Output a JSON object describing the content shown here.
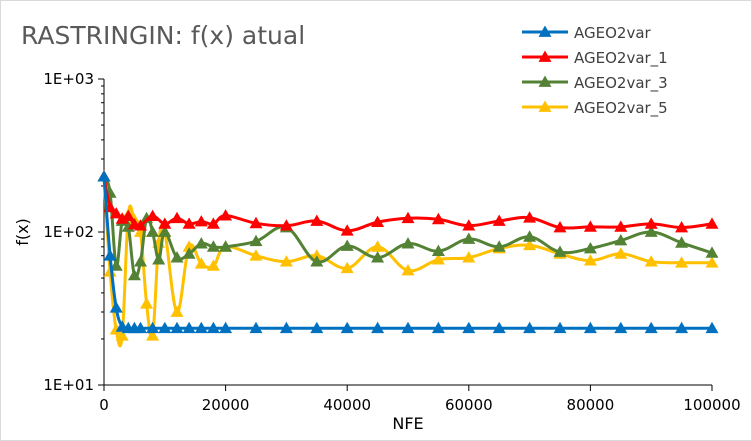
{
  "chart_data": {
    "type": "line",
    "title": "RASTRINGIN: f(x) atual",
    "xlabel": "NFE",
    "ylabel": "f(x)",
    "xlim": [
      0,
      100000
    ],
    "ylim": [
      10,
      1000
    ],
    "yscale": "log",
    "grid": false,
    "legend": "top-right",
    "x_ticks": [
      0,
      20000,
      40000,
      60000,
      80000,
      100000
    ],
    "x_tick_labels": [
      "0",
      "20000",
      "40000",
      "60000",
      "80000",
      "100000"
    ],
    "y_ticks": [
      10,
      100,
      1000
    ],
    "y_tick_labels": [
      "1E+01",
      "1E+02",
      "1E+03"
    ],
    "series": [
      {
        "name": "AGEO2var",
        "color": "#0070c0",
        "x": [
          0,
          1000,
          2000,
          3000,
          4000,
          5000,
          6000,
          8000,
          10000,
          12000,
          14000,
          16000,
          18000,
          20000,
          25000,
          30000,
          35000,
          40000,
          45000,
          50000,
          55000,
          60000,
          65000,
          70000,
          75000,
          80000,
          85000,
          90000,
          95000,
          100000
        ],
        "y": [
          230,
          70,
          32,
          24,
          23.5,
          23.5,
          23.5,
          23.5,
          23.5,
          23.5,
          23.5,
          23.5,
          23.5,
          23.5,
          23.5,
          23.5,
          23.5,
          23.5,
          23.5,
          23.5,
          23.5,
          23.5,
          23.5,
          23.5,
          23.5,
          23.5,
          23.5,
          23.5,
          23.5,
          23.5
        ]
      },
      {
        "name": "AGEO2var_1",
        "color": "#ff0000",
        "x": [
          0,
          1000,
          2000,
          3000,
          4000,
          5000,
          6000,
          8000,
          10000,
          12000,
          14000,
          16000,
          18000,
          20000,
          25000,
          30000,
          35000,
          40000,
          45000,
          50000,
          55000,
          60000,
          65000,
          70000,
          75000,
          80000,
          85000,
          90000,
          95000,
          100000
        ],
        "y": [
          230,
          145,
          132,
          122,
          127,
          112,
          110,
          127,
          113,
          123,
          113,
          117,
          113,
          128,
          114,
          110,
          118,
          102,
          116,
          123,
          121,
          110,
          118,
          124,
          107,
          108,
          108,
          113,
          107,
          113
        ]
      },
      {
        "name": "AGEO2var_3",
        "color": "#548235",
        "x": [
          0,
          1000,
          2000,
          3000,
          4000,
          5000,
          6000,
          7000,
          8000,
          9000,
          10000,
          12000,
          14000,
          16000,
          18000,
          20000,
          25000,
          30000,
          35000,
          40000,
          45000,
          50000,
          55000,
          60000,
          65000,
          70000,
          75000,
          80000,
          85000,
          90000,
          95000,
          100000
        ],
        "y": [
          230,
          180,
          60,
          118,
          108,
          52,
          64,
          123,
          100,
          66,
          100,
          68,
          72,
          84,
          80,
          80,
          87,
          107,
          64,
          81,
          68,
          84,
          75,
          90,
          80,
          93,
          74,
          78,
          88,
          100,
          85,
          73
        ]
      },
      {
        "name": "AGEO2var_5",
        "color": "#ffc000",
        "x": [
          0,
          1000,
          2000,
          3000,
          4000,
          5000,
          6000,
          7000,
          8000,
          9000,
          10000,
          12000,
          14000,
          16000,
          18000,
          20000,
          25000,
          30000,
          35000,
          40000,
          45000,
          50000,
          55000,
          60000,
          65000,
          70000,
          75000,
          80000,
          85000,
          90000,
          95000,
          100000
        ],
        "y": [
          230,
          55,
          23,
          21,
          130,
          120,
          100,
          34,
          21,
          85,
          100,
          30,
          80,
          62,
          60,
          80,
          70,
          64,
          70,
          58,
          80,
          56,
          66,
          68,
          78,
          82,
          72,
          65,
          72,
          64,
          63,
          63
        ]
      }
    ]
  }
}
